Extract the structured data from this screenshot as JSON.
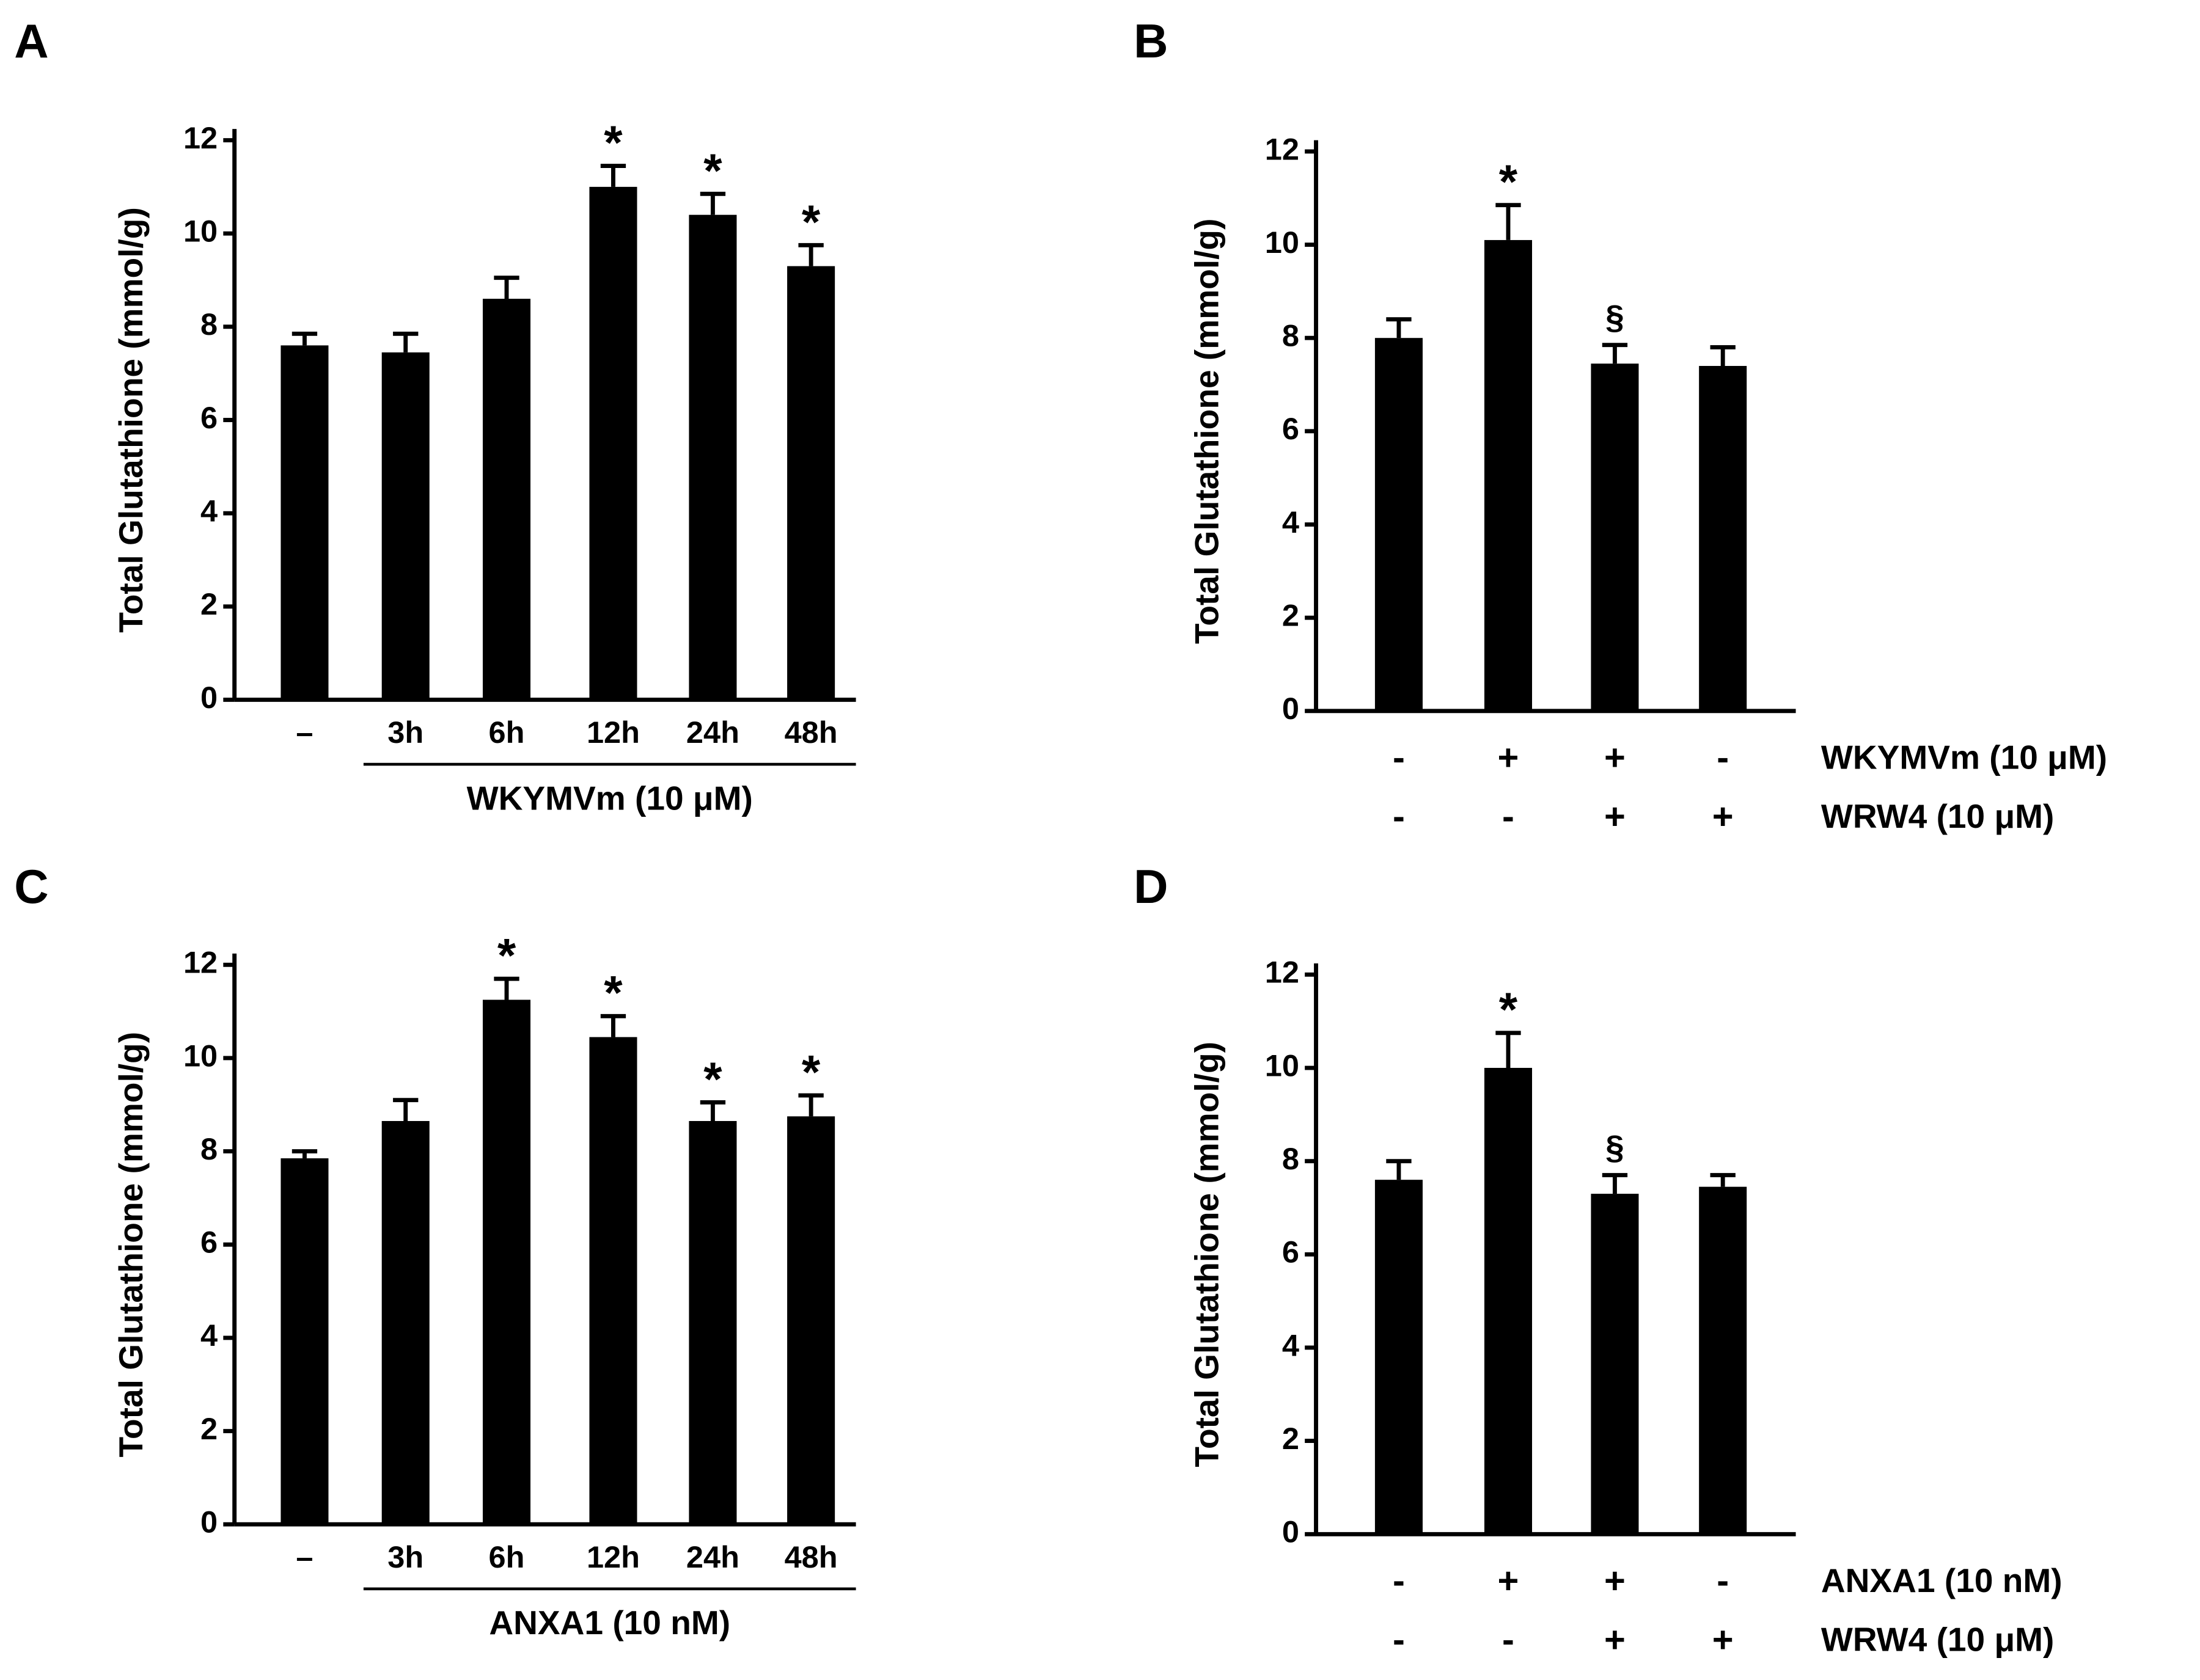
{
  "chart_data": [
    {
      "type": "bar",
      "panel": "A",
      "ylabel": "Total Glutathione (mmol/g)",
      "categories": [
        "–",
        "3h",
        "6h",
        "12h",
        "24h",
        "48h"
      ],
      "values": [
        7.6,
        7.45,
        8.6,
        11.0,
        10.4,
        9.3
      ],
      "errors": [
        0.25,
        0.4,
        0.45,
        0.45,
        0.45,
        0.45
      ],
      "annotations": [
        null,
        null,
        null,
        "*",
        "*",
        "*"
      ],
      "group_label": "WKYMVm (10 μM)",
      "color": "#000000",
      "ylim": [
        0,
        12
      ],
      "yticks": [
        0,
        2,
        4,
        6,
        8,
        10,
        12
      ]
    },
    {
      "type": "bar",
      "panel": "B",
      "ylabel": "Total Glutathione (mmol/g)",
      "conditions": [
        {
          "label": "WKYMVm (10 μM)",
          "signs": [
            "-",
            "+",
            "+",
            "-"
          ]
        },
        {
          "label": "WRW4 (10 μM)",
          "signs": [
            "-",
            "-",
            "+",
            "+"
          ]
        }
      ],
      "values": [
        8.0,
        10.1,
        7.45,
        7.4
      ],
      "errors": [
        0.4,
        0.75,
        0.4,
        0.4
      ],
      "annotations": [
        null,
        "*",
        "§",
        null
      ],
      "color": "#000000",
      "ylim": [
        0,
        12
      ],
      "yticks": [
        0,
        2,
        4,
        6,
        8,
        10,
        12
      ]
    },
    {
      "type": "bar",
      "panel": "C",
      "ylabel": "Total Glutathione (mmol/g)",
      "categories": [
        "–",
        "3h",
        "6h",
        "12h",
        "24h",
        "48h"
      ],
      "values": [
        7.85,
        8.65,
        11.25,
        10.45,
        8.65,
        8.75
      ],
      "errors": [
        0.15,
        0.45,
        0.45,
        0.45,
        0.4,
        0.45
      ],
      "annotations": [
        null,
        null,
        "*",
        "*",
        "*",
        "*"
      ],
      "group_label": "ANXA1 (10 nM)",
      "color": "#000000",
      "ylim": [
        0,
        12
      ],
      "yticks": [
        0,
        2,
        4,
        6,
        8,
        10,
        12
      ]
    },
    {
      "type": "bar",
      "panel": "D",
      "ylabel": "Total Glutathione (mmol/g)",
      "conditions": [
        {
          "label": "ANXA1 (10 nM)",
          "signs": [
            "-",
            "+",
            "+",
            "-"
          ]
        },
        {
          "label": "WRW4 (10 μM)",
          "signs": [
            "-",
            "-",
            "+",
            "+"
          ]
        }
      ],
      "values": [
        7.6,
        10.0,
        7.3,
        7.45
      ],
      "errors": [
        0.4,
        0.75,
        0.4,
        0.25
      ],
      "annotations": [
        null,
        "*",
        "§",
        null
      ],
      "color": "#000000",
      "ylim": [
        0,
        12
      ],
      "yticks": [
        0,
        2,
        4,
        6,
        8,
        10,
        12
      ]
    }
  ]
}
